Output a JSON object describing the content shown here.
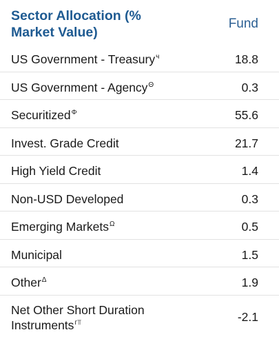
{
  "header": {
    "title": "Sector Allocation (% Market Value)",
    "column": "Fund"
  },
  "rows": [
    {
      "label": "US Government - Treasury",
      "mark": "ч",
      "value": "18.8"
    },
    {
      "label": "US Government - Agency",
      "mark": "Θ",
      "value": "0.3"
    },
    {
      "label": "Securitized",
      "mark": "Φ",
      "value": "55.6"
    },
    {
      "label": "Invest. Grade Credit",
      "mark": "",
      "value": "21.7"
    },
    {
      "label": "High Yield Credit",
      "mark": "",
      "value": "1.4"
    },
    {
      "label": "Non-USD Developed",
      "mark": "",
      "value": "0.3"
    },
    {
      "label": "Emerging Markets",
      "mark": "Ω",
      "value": "0.5"
    },
    {
      "label": "Municipal",
      "mark": "",
      "value": "1.5"
    },
    {
      "label": "Other",
      "mark": "Δ",
      "value": "1.9"
    },
    {
      "label": "Net Other Short Duration Instruments",
      "mark": "г⫪",
      "value": "-2.1"
    }
  ],
  "colors": {
    "title": "#1f5b92",
    "column_head": "#2b5f93",
    "text": "#1a1a1a"
  }
}
